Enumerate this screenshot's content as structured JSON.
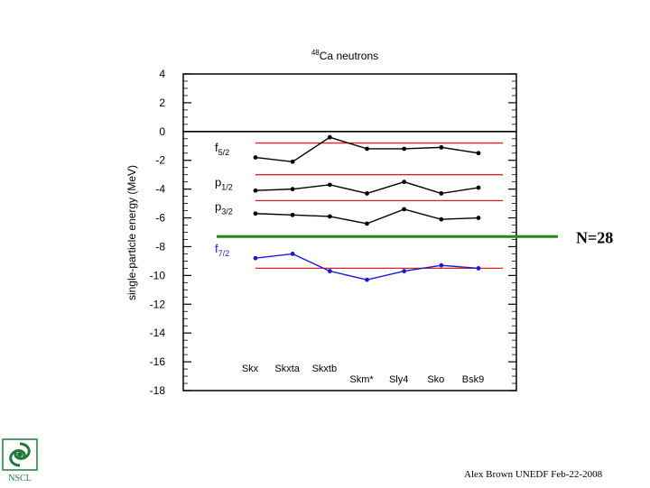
{
  "chart_data": {
    "type": "line",
    "title_sup": "48",
    "title": "Ca neutrons",
    "ylabel": "single-particle energy (MeV)",
    "xlabel": "",
    "ylim": [
      -18,
      4
    ],
    "yticks": [
      4,
      2,
      0,
      -2,
      -4,
      -6,
      -8,
      -10,
      -12,
      -14,
      -16,
      -18
    ],
    "categories": [
      "Skx",
      "Skxta",
      "Skxtb",
      "Skm*",
      "Sly4",
      "Sko",
      "Bsk9"
    ],
    "series": [
      {
        "name": "f",
        "sub": "5/2",
        "color": "#000000",
        "values": [
          -1.8,
          -2.1,
          -0.4,
          -1.2,
          -1.2,
          -1.1,
          -1.5
        ]
      },
      {
        "name": "p",
        "sub": "1/2",
        "color": "#000000",
        "values": [
          -4.1,
          -4.0,
          -3.7,
          -4.3,
          -3.5,
          -4.3,
          -3.9
        ]
      },
      {
        "name": "p",
        "sub": "3/2",
        "color": "#000000",
        "values": [
          -5.7,
          -5.8,
          -5.9,
          -6.4,
          -5.4,
          -6.1,
          -6.0
        ]
      },
      {
        "name": "f",
        "sub": "7/2",
        "color": "#1a1ad6",
        "values": [
          -8.8,
          -8.5,
          -9.7,
          -10.3,
          -9.7,
          -9.3,
          -9.5
        ]
      }
    ],
    "experimental_levels": [
      -0.8,
      -3.0,
      -4.8,
      -9.5
    ],
    "experimental_color": "#dd2222",
    "zero_line": 0,
    "shell_gap": {
      "label": "N=28",
      "y": -7.3,
      "color": "#22881f"
    }
  },
  "footer": {
    "text": "Alex Brown UNEDF Feb-22-2008"
  },
  "logo": {
    "text": "NSCL",
    "color": "#1f7a3a"
  }
}
